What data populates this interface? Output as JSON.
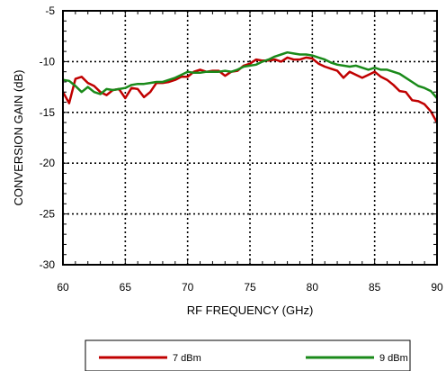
{
  "chart_data": {
    "type": "line",
    "xlabel": "RF FREQUENCY (GHz)",
    "ylabel": "CONVERSION GAIN (dB)",
    "xlim": [
      60,
      90
    ],
    "ylim": [
      -30,
      -5
    ],
    "xticks": [
      60,
      65,
      70,
      75,
      80,
      85,
      90
    ],
    "yticks": [
      -30,
      -25,
      -20,
      -15,
      -10,
      -5
    ],
    "xtick_labels": [
      "60",
      "65",
      "70",
      "75",
      "80",
      "85",
      "90"
    ],
    "ytick_labels": [
      "-30",
      "-25",
      "-20",
      "-15",
      "-10",
      "-5"
    ],
    "grid": true,
    "legend_position": "bottom",
    "series": [
      {
        "name": "7 dBm",
        "color": "#c00000",
        "points": [
          [
            60,
            -13.0
          ],
          [
            60.5,
            -14.1
          ],
          [
            61,
            -11.7
          ],
          [
            61.5,
            -11.5
          ],
          [
            62,
            -12.1
          ],
          [
            62.5,
            -12.4
          ],
          [
            63,
            -13.0
          ],
          [
            63.5,
            -13.3
          ],
          [
            64,
            -12.8
          ],
          [
            64.5,
            -12.7
          ],
          [
            65,
            -13.6
          ],
          [
            65.5,
            -12.6
          ],
          [
            66,
            -12.7
          ],
          [
            66.5,
            -13.5
          ],
          [
            67,
            -13.0
          ],
          [
            67.5,
            -12.1
          ],
          [
            68,
            -12.1
          ],
          [
            68.5,
            -12.0
          ],
          [
            69,
            -11.8
          ],
          [
            69.5,
            -11.5
          ],
          [
            70,
            -11.5
          ],
          [
            70.5,
            -11.0
          ],
          [
            71,
            -10.8
          ],
          [
            71.5,
            -11.0
          ],
          [
            72,
            -10.9
          ],
          [
            72.5,
            -10.9
          ],
          [
            73,
            -11.4
          ],
          [
            73.5,
            -11.0
          ],
          [
            74,
            -10.9
          ],
          [
            74.5,
            -10.4
          ],
          [
            75,
            -10.2
          ],
          [
            75.5,
            -9.8
          ],
          [
            76,
            -9.9
          ],
          [
            76.5,
            -9.9
          ],
          [
            77,
            -9.8
          ],
          [
            77.5,
            -10.0
          ],
          [
            78,
            -9.6
          ],
          [
            78.5,
            -9.8
          ],
          [
            79,
            -9.8
          ],
          [
            79.5,
            -9.6
          ],
          [
            80,
            -9.7
          ],
          [
            80.5,
            -10.2
          ],
          [
            81,
            -10.5
          ],
          [
            81.5,
            -10.7
          ],
          [
            82,
            -10.9
          ],
          [
            82.5,
            -11.6
          ],
          [
            83,
            -11.0
          ],
          [
            83.5,
            -11.3
          ],
          [
            84,
            -11.6
          ],
          [
            84.5,
            -11.3
          ],
          [
            85,
            -11.0
          ],
          [
            85.5,
            -11.5
          ],
          [
            86,
            -11.8
          ],
          [
            86.5,
            -12.3
          ],
          [
            87,
            -12.9
          ],
          [
            87.5,
            -13.0
          ],
          [
            88,
            -13.8
          ],
          [
            88.5,
            -13.9
          ],
          [
            89,
            -14.2
          ],
          [
            89.5,
            -14.9
          ],
          [
            90,
            -16.0
          ]
        ]
      },
      {
        "name": "9 dBm",
        "color": "#1a8a1a",
        "points": [
          [
            60,
            -11.8
          ],
          [
            60.5,
            -11.9
          ],
          [
            61,
            -12.4
          ],
          [
            61.5,
            -13.0
          ],
          [
            62,
            -12.5
          ],
          [
            62.5,
            -13.0
          ],
          [
            63,
            -13.2
          ],
          [
            63.5,
            -12.7
          ],
          [
            64,
            -12.8
          ],
          [
            64.5,
            -12.7
          ],
          [
            65,
            -12.6
          ],
          [
            65.5,
            -12.3
          ],
          [
            66,
            -12.2
          ],
          [
            66.5,
            -12.2
          ],
          [
            67,
            -12.1
          ],
          [
            67.5,
            -12.0
          ],
          [
            68,
            -12.0
          ],
          [
            68.5,
            -11.8
          ],
          [
            69,
            -11.6
          ],
          [
            69.5,
            -11.3
          ],
          [
            70,
            -11.0
          ],
          [
            70.5,
            -11.1
          ],
          [
            71,
            -11.1
          ],
          [
            71.5,
            -11.0
          ],
          [
            72,
            -11.0
          ],
          [
            72.5,
            -11.0
          ],
          [
            73,
            -10.9
          ],
          [
            73.5,
            -11.0
          ],
          [
            74,
            -10.8
          ],
          [
            74.5,
            -10.5
          ],
          [
            75,
            -10.4
          ],
          [
            75.5,
            -10.3
          ],
          [
            76,
            -10.0
          ],
          [
            76.5,
            -9.8
          ],
          [
            77,
            -9.5
          ],
          [
            77.5,
            -9.3
          ],
          [
            78,
            -9.1
          ],
          [
            78.5,
            -9.2
          ],
          [
            79,
            -9.3
          ],
          [
            79.5,
            -9.3
          ],
          [
            80,
            -9.4
          ],
          [
            80.5,
            -9.6
          ],
          [
            81,
            -9.8
          ],
          [
            81.5,
            -10.1
          ],
          [
            82,
            -10.3
          ],
          [
            82.5,
            -10.4
          ],
          [
            83,
            -10.5
          ],
          [
            83.5,
            -10.4
          ],
          [
            84,
            -10.6
          ],
          [
            84.5,
            -10.8
          ],
          [
            85,
            -10.6
          ],
          [
            85.5,
            -10.8
          ],
          [
            86,
            -10.8
          ],
          [
            86.5,
            -11.0
          ],
          [
            87,
            -11.2
          ],
          [
            87.5,
            -11.6
          ],
          [
            88,
            -12.0
          ],
          [
            88.5,
            -12.4
          ],
          [
            89,
            -12.6
          ],
          [
            89.5,
            -12.9
          ],
          [
            90,
            -13.6
          ]
        ]
      }
    ]
  }
}
